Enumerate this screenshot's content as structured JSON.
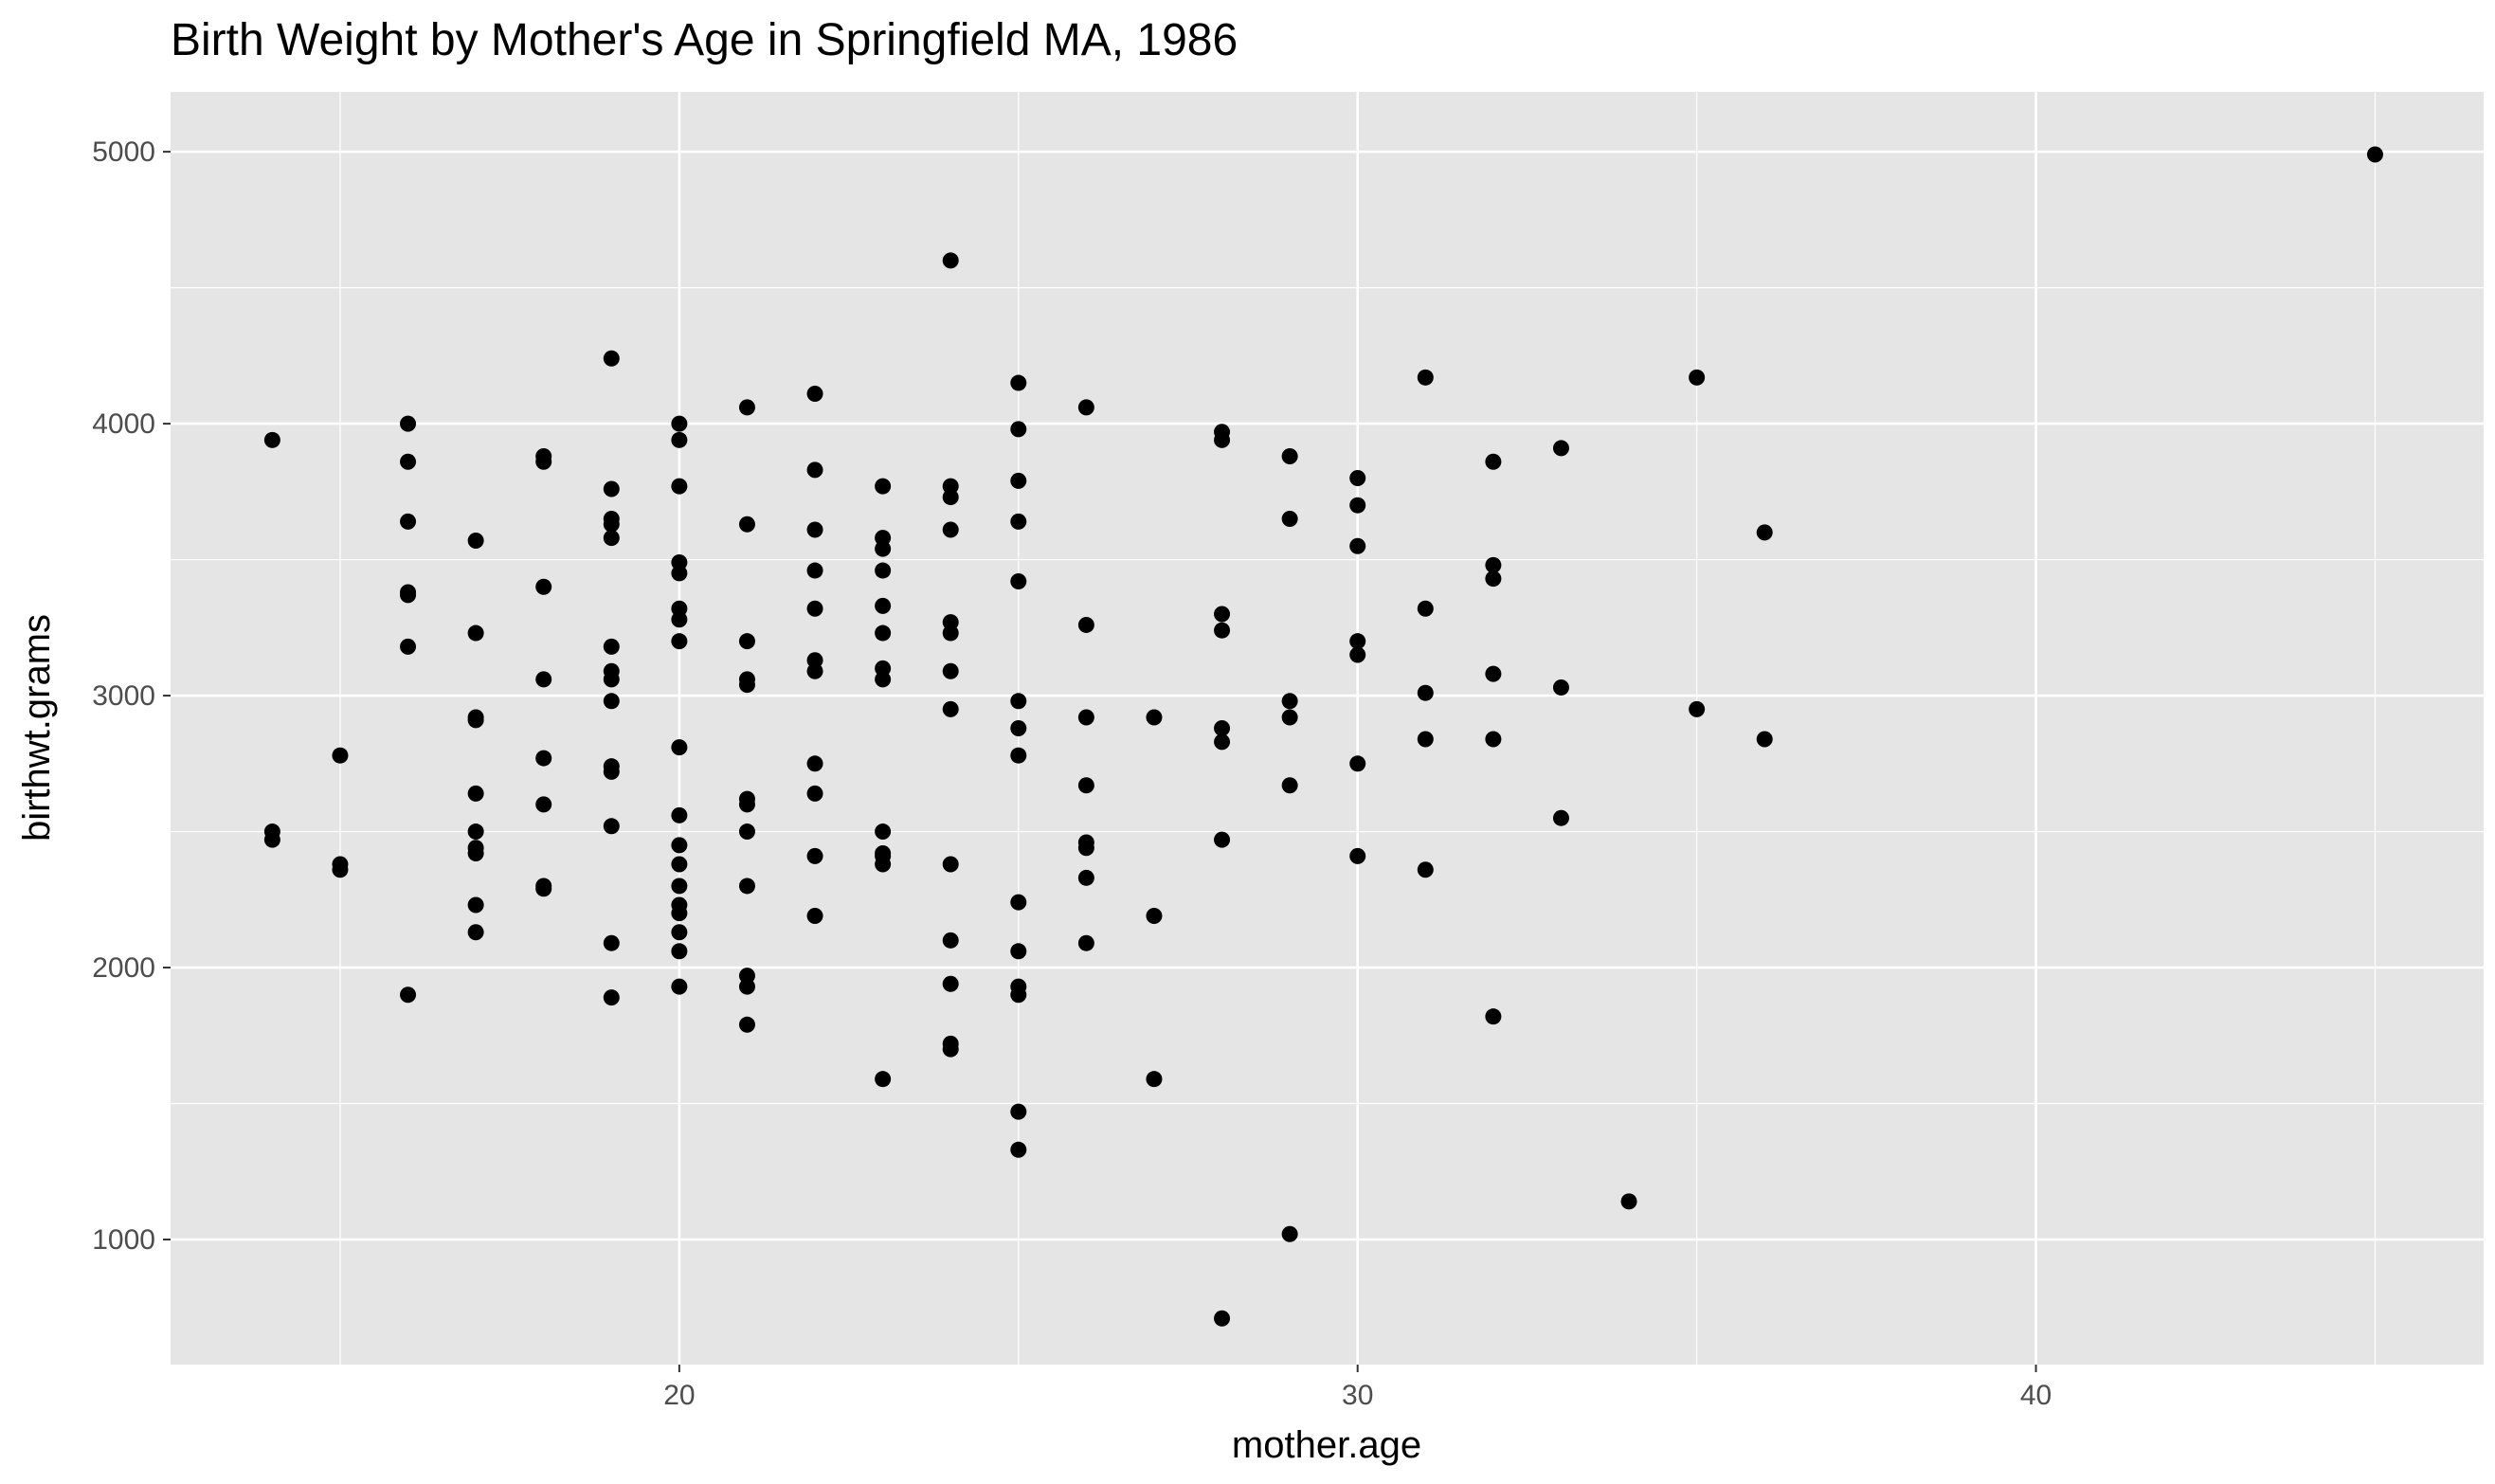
{
  "chart_data": {
    "type": "scatter",
    "title": "Birth Weight by Mother's Age in Springfield MA, 1986",
    "xlabel": "mother.age",
    "ylabel": "birthwt.grams",
    "xlim": [
      12.5,
      46.6
    ],
    "ylim": [
      540,
      5220
    ],
    "x_ticks": [
      20,
      30,
      40
    ],
    "x_tick_labels": [
      "20",
      "30",
      "40"
    ],
    "x_minor_ticks": [
      15,
      25,
      35,
      45
    ],
    "y_ticks": [
      1000,
      2000,
      3000,
      4000,
      5000
    ],
    "y_tick_labels": [
      "1000",
      "2000",
      "3000",
      "4000",
      "5000"
    ],
    "y_minor_ticks": [
      1500,
      2500,
      3500,
      4500
    ],
    "grid": true,
    "colors": {
      "panel": "#e5e5e5",
      "grid": "#ffffff",
      "point": "#000000",
      "tick": "#333333"
    },
    "points": [
      [
        14,
        3940
      ],
      [
        14,
        2500
      ],
      [
        14,
        2470
      ],
      [
        15,
        2780
      ],
      [
        15,
        2380
      ],
      [
        15,
        2360
      ],
      [
        16,
        4000
      ],
      [
        16,
        3860
      ],
      [
        16,
        3640
      ],
      [
        16,
        3380
      ],
      [
        16,
        3370
      ],
      [
        16,
        3180
      ],
      [
        16,
        1900
      ],
      [
        17,
        3570
      ],
      [
        17,
        3230
      ],
      [
        17,
        2920
      ],
      [
        17,
        2910
      ],
      [
        17,
        2640
      ],
      [
        17,
        2500
      ],
      [
        17,
        2440
      ],
      [
        17,
        2420
      ],
      [
        17,
        2230
      ],
      [
        17,
        2130
      ],
      [
        18,
        3880
      ],
      [
        18,
        3860
      ],
      [
        18,
        3400
      ],
      [
        18,
        3060
      ],
      [
        18,
        2770
      ],
      [
        18,
        2600
      ],
      [
        18,
        2300
      ],
      [
        18,
        2290
      ],
      [
        19,
        4240
      ],
      [
        19,
        3760
      ],
      [
        19,
        3650
      ],
      [
        19,
        3630
      ],
      [
        19,
        3580
      ],
      [
        19,
        3180
      ],
      [
        19,
        3090
      ],
      [
        19,
        3060
      ],
      [
        19,
        2980
      ],
      [
        19,
        2740
      ],
      [
        19,
        2720
      ],
      [
        19,
        2520
      ],
      [
        19,
        2090
      ],
      [
        19,
        1890
      ],
      [
        20,
        4000
      ],
      [
        20,
        3940
      ],
      [
        20,
        3770
      ],
      [
        20,
        3490
      ],
      [
        20,
        3450
      ],
      [
        20,
        3320
      ],
      [
        20,
        3280
      ],
      [
        20,
        3200
      ],
      [
        20,
        2810
      ],
      [
        20,
        2560
      ],
      [
        20,
        2450
      ],
      [
        20,
        2380
      ],
      [
        20,
        2300
      ],
      [
        20,
        2230
      ],
      [
        20,
        2200
      ],
      [
        20,
        2130
      ],
      [
        20,
        2060
      ],
      [
        20,
        1930
      ],
      [
        21,
        4060
      ],
      [
        21,
        3630
      ],
      [
        21,
        3200
      ],
      [
        21,
        3060
      ],
      [
        21,
        3040
      ],
      [
        21,
        2620
      ],
      [
        21,
        2600
      ],
      [
        21,
        2500
      ],
      [
        21,
        2300
      ],
      [
        21,
        1970
      ],
      [
        21,
        1930
      ],
      [
        21,
        1790
      ],
      [
        22,
        4110
      ],
      [
        22,
        3830
      ],
      [
        22,
        3610
      ],
      [
        22,
        3460
      ],
      [
        22,
        3320
      ],
      [
        22,
        3130
      ],
      [
        22,
        3090
      ],
      [
        22,
        2750
      ],
      [
        22,
        2640
      ],
      [
        22,
        2410
      ],
      [
        22,
        2190
      ],
      [
        23,
        3770
      ],
      [
        23,
        3580
      ],
      [
        23,
        3540
      ],
      [
        23,
        3460
      ],
      [
        23,
        3330
      ],
      [
        23,
        3230
      ],
      [
        23,
        3100
      ],
      [
        23,
        3060
      ],
      [
        23,
        2500
      ],
      [
        23,
        2420
      ],
      [
        23,
        2410
      ],
      [
        23,
        2380
      ],
      [
        23,
        1590
      ],
      [
        24,
        4600
      ],
      [
        24,
        3770
      ],
      [
        24,
        3730
      ],
      [
        24,
        3610
      ],
      [
        24,
        3270
      ],
      [
        24,
        3230
      ],
      [
        24,
        3090
      ],
      [
        24,
        2950
      ],
      [
        24,
        2380
      ],
      [
        24,
        2100
      ],
      [
        24,
        1940
      ],
      [
        24,
        1720
      ],
      [
        24,
        1700
      ],
      [
        25,
        4150
      ],
      [
        25,
        3980
      ],
      [
        25,
        3790
      ],
      [
        25,
        3640
      ],
      [
        25,
        3420
      ],
      [
        25,
        2980
      ],
      [
        25,
        2880
      ],
      [
        25,
        2780
      ],
      [
        25,
        2240
      ],
      [
        25,
        2060
      ],
      [
        25,
        1930
      ],
      [
        25,
        1900
      ],
      [
        25,
        1470
      ],
      [
        25,
        1330
      ],
      [
        26,
        4060
      ],
      [
        26,
        3260
      ],
      [
        26,
        2920
      ],
      [
        26,
        2670
      ],
      [
        26,
        2460
      ],
      [
        26,
        2440
      ],
      [
        26,
        2330
      ],
      [
        26,
        2090
      ],
      [
        27,
        2920
      ],
      [
        27,
        2190
      ],
      [
        27,
        1590
      ],
      [
        28,
        3970
      ],
      [
        28,
        3940
      ],
      [
        28,
        3300
      ],
      [
        28,
        3240
      ],
      [
        28,
        2880
      ],
      [
        28,
        2830
      ],
      [
        28,
        2470
      ],
      [
        28,
        710
      ],
      [
        29,
        3880
      ],
      [
        29,
        3650
      ],
      [
        29,
        2980
      ],
      [
        29,
        2920
      ],
      [
        29,
        2670
      ],
      [
        29,
        1020
      ],
      [
        30,
        3800
      ],
      [
        30,
        3700
      ],
      [
        30,
        3550
      ],
      [
        30,
        3200
      ],
      [
        30,
        3150
      ],
      [
        30,
        2750
      ],
      [
        30,
        2410
      ],
      [
        31,
        4170
      ],
      [
        31,
        3320
      ],
      [
        31,
        3010
      ],
      [
        31,
        2840
      ],
      [
        31,
        2360
      ],
      [
        32,
        3860
      ],
      [
        32,
        3480
      ],
      [
        32,
        3430
      ],
      [
        32,
        3080
      ],
      [
        32,
        2840
      ],
      [
        32,
        1820
      ],
      [
        33,
        3910
      ],
      [
        33,
        3030
      ],
      [
        33,
        2550
      ],
      [
        34,
        1140
      ],
      [
        35,
        4170
      ],
      [
        35,
        2950
      ],
      [
        36,
        3600
      ],
      [
        36,
        2840
      ],
      [
        45,
        4990
      ]
    ]
  }
}
